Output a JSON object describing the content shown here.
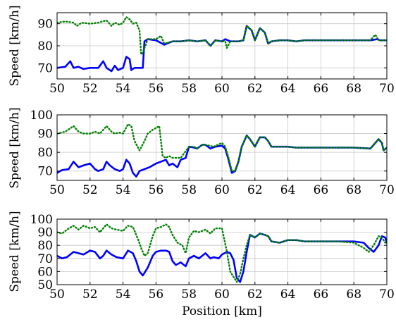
{
  "chart_data": [
    {
      "type": "line",
      "xlabel": "",
      "ylabel": "Speed [km/h]",
      "xlim": [
        50,
        70
      ],
      "ylim": [
        65,
        95
      ],
      "xticks": [
        "50",
        "52",
        "54",
        "56",
        "58",
        "60",
        "62",
        "64",
        "66",
        "68",
        "70"
      ],
      "yticks": [
        "70",
        "80",
        "90"
      ],
      "grid": true,
      "colors": {
        "solid": "#0000ff",
        "dotted": "#008000"
      },
      "series": [
        {
          "style": "solid",
          "x": [
            50,
            50.5,
            50.8,
            51,
            51.3,
            51.6,
            52,
            52.5,
            52.8,
            53,
            53.3,
            53.5,
            53.7,
            54,
            54.2,
            54.4,
            54.5,
            54.7,
            55,
            55.2,
            55.3,
            55.5,
            56,
            56.5,
            57,
            57.5,
            58,
            58.5,
            59,
            59.3,
            59.6,
            60,
            60.2,
            60.5,
            61,
            61.3,
            61.5,
            61.8,
            62,
            62.3,
            62.6,
            62.8,
            63,
            63.5,
            64,
            64.5,
            65,
            66,
            67,
            68,
            69,
            69.4,
            69.6,
            70
          ],
          "y": [
            70,
            70.5,
            73,
            70,
            70.5,
            69.5,
            70,
            70,
            73,
            70,
            68.5,
            71,
            69,
            70,
            75,
            74,
            69,
            70,
            70,
            70,
            82,
            83,
            82.5,
            80.5,
            82,
            82,
            82.5,
            82,
            82.5,
            80,
            82.5,
            82,
            83,
            82,
            82,
            82.5,
            89,
            87,
            82.5,
            88,
            86,
            81,
            82,
            82.5,
            82.5,
            82,
            82.5,
            82.5,
            82.5,
            82.5,
            82.5,
            83,
            82.5,
            82.5
          ]
        },
        {
          "style": "dotted",
          "x": [
            50,
            50.5,
            51,
            51.2,
            51.5,
            52,
            52.5,
            53,
            53.3,
            53.5,
            53.8,
            54,
            54.2,
            54.4,
            54.6,
            54.8,
            55,
            55.1,
            55.2,
            55.3,
            55.5,
            56,
            56.3,
            56.5,
            57,
            57.5,
            58,
            58.5,
            59,
            59.3,
            59.6,
            60,
            60.2,
            60.3,
            60.5,
            61,
            61.3,
            61.5,
            61.8,
            62,
            62.3,
            62.6,
            62.8,
            63,
            63.5,
            64,
            64.5,
            65,
            66,
            67,
            68,
            69,
            69.3,
            69.5,
            70
          ],
          "y": [
            90.5,
            91,
            90.5,
            89,
            90.5,
            90,
            90.5,
            91.5,
            89,
            90.5,
            89.5,
            90.5,
            93,
            92,
            90,
            90.5,
            87,
            76,
            77,
            79,
            83,
            83,
            84.5,
            81,
            82,
            82,
            82.5,
            82,
            82.5,
            80,
            82.5,
            82,
            82,
            79,
            82,
            82,
            82.5,
            89,
            87,
            82.5,
            88,
            86,
            81,
            82,
            82.5,
            82.5,
            82,
            82.5,
            82.5,
            82.5,
            82.5,
            82.5,
            85,
            82.5,
            82.5
          ]
        }
      ]
    },
    {
      "type": "line",
      "xlabel": "",
      "ylabel": "Speed [km/h]",
      "xlim": [
        50,
        70
      ],
      "ylim": [
        65,
        100
      ],
      "xticks": [
        "50",
        "52",
        "54",
        "56",
        "58",
        "60",
        "62",
        "64",
        "66",
        "68",
        "70"
      ],
      "yticks": [
        "70",
        "80",
        "90",
        "100"
      ],
      "grid": true,
      "series": [
        {
          "style": "solid",
          "x": [
            50,
            50.3,
            50.7,
            51,
            51.3,
            51.6,
            52,
            52.3,
            52.5,
            52.8,
            53,
            53.2,
            53.5,
            53.8,
            54,
            54.2,
            54.4,
            54.6,
            54.8,
            55,
            55.3,
            55.6,
            56,
            56.3,
            56.6,
            56.8,
            57,
            57.3,
            57.5,
            57.8,
            58,
            58.3,
            58.5,
            58.8,
            59,
            59.3,
            59.6,
            60,
            60.2,
            60.4,
            60.6,
            60.8,
            61,
            61.2,
            61.5,
            61.7,
            62,
            62.3,
            62.6,
            62.8,
            63,
            63.5,
            64,
            64.5,
            65,
            66,
            67,
            68,
            69,
            69.3,
            69.5,
            69.7,
            69.8,
            70
          ],
          "y": [
            69,
            70.5,
            71,
            75,
            72,
            73,
            74,
            71,
            70,
            71,
            75,
            73,
            71,
            70,
            71,
            76,
            74,
            69,
            67,
            70,
            71,
            72,
            74,
            75,
            76,
            73,
            74,
            72,
            76,
            77,
            83,
            82.5,
            82,
            84,
            84,
            82,
            83,
            83.5,
            82,
            76,
            69,
            70,
            75,
            83,
            89,
            87,
            83,
            88,
            88,
            86,
            83,
            83,
            83,
            82.5,
            82.5,
            82.5,
            82.5,
            82.5,
            82,
            85,
            87,
            85,
            81,
            82.5
          ]
        },
        {
          "style": "dotted",
          "x": [
            50,
            50.5,
            51,
            51.3,
            51.6,
            52,
            52.3,
            52.6,
            53,
            53.3,
            53.5,
            53.8,
            54,
            54.3,
            54.5,
            54.7,
            55,
            55.3,
            55.5,
            55.8,
            56,
            56.2,
            56.4,
            56.6,
            56.8,
            57,
            57.5,
            58,
            58.3,
            58.5,
            58.8,
            59,
            59.5,
            60,
            60.2,
            60.4,
            60.6,
            60.8,
            61,
            61.2,
            61.5,
            61.7,
            62,
            62.3,
            62.6,
            62.8,
            63,
            63.5,
            64,
            64.5,
            65,
            66,
            67,
            68,
            69,
            69.3,
            69.5,
            69.7,
            69.8,
            70
          ],
          "y": [
            90,
            91,
            94,
            91,
            90,
            90,
            91,
            90,
            94,
            91,
            90,
            90.5,
            90,
            95,
            94,
            86,
            81,
            86,
            90,
            92,
            93,
            94,
            78,
            77,
            78,
            77,
            77,
            83,
            83,
            82,
            84,
            84,
            83,
            85,
            83,
            77,
            70,
            70,
            75,
            83,
            89,
            87,
            83,
            88,
            88,
            86,
            83,
            83,
            83,
            82.5,
            82.5,
            82.5,
            82.5,
            82.5,
            82,
            85,
            87,
            85,
            81,
            82.5
          ]
        }
      ]
    },
    {
      "type": "line",
      "xlabel": "Position [km]",
      "ylabel": "Speed [km/h]",
      "xlim": [
        50,
        70
      ],
      "ylim": [
        50,
        100
      ],
      "xticks": [
        "50",
        "52",
        "54",
        "56",
        "58",
        "60",
        "62",
        "64",
        "66",
        "68",
        "70"
      ],
      "yticks": [
        "50",
        "60",
        "70",
        "80",
        "90",
        "100"
      ],
      "grid": true,
      "series": [
        {
          "style": "solid",
          "x": [
            50,
            50.3,
            50.6,
            51,
            51.3,
            51.6,
            52,
            52.3,
            52.6,
            52.8,
            53,
            53.3,
            53.6,
            54,
            54.3,
            54.6,
            54.8,
            55,
            55.2,
            55.5,
            55.8,
            56,
            56.3,
            56.6,
            56.8,
            57,
            57.2,
            57.5,
            57.8,
            58,
            58.3,
            58.6,
            59,
            59.3,
            59.5,
            59.8,
            60,
            60.3,
            60.5,
            60.7,
            60.9,
            61.1,
            61.3,
            61.5,
            61.7,
            62,
            62.3,
            62.6,
            62.8,
            63,
            63.5,
            64,
            64.5,
            65,
            66,
            67,
            68,
            68.6,
            68.9,
            69.2,
            69.5,
            69.7,
            69.9,
            70
          ],
          "y": [
            72,
            70,
            71,
            75,
            74,
            73,
            76,
            75,
            70,
            72,
            76,
            73,
            71,
            70,
            76,
            74,
            68,
            60,
            57,
            63,
            72,
            75,
            76,
            76,
            75,
            68,
            65,
            67,
            64,
            70,
            72,
            70,
            74,
            70,
            71,
            70,
            73,
            75,
            74,
            69,
            55,
            52,
            60,
            75,
            88,
            86,
            89,
            88,
            87,
            83,
            82,
            84,
            84,
            83,
            83,
            83,
            83,
            82,
            78,
            75,
            80,
            87,
            86,
            82
          ]
        },
        {
          "style": "dotted",
          "x": [
            50,
            50.3,
            50.6,
            51,
            51.3,
            51.6,
            52,
            52.3,
            52.6,
            53,
            53.3,
            53.6,
            54,
            54.3,
            54.6,
            54.9,
            55.1,
            55.3,
            55.5,
            55.8,
            56,
            56.3,
            56.6,
            56.8,
            57,
            57.3,
            57.6,
            57.8,
            58,
            58.3,
            58.6,
            59,
            59.3,
            59.6,
            60,
            60.3,
            60.5,
            60.7,
            60.9,
            61.1,
            61.3,
            61.5,
            61.7,
            62,
            62.3,
            62.6,
            62.8,
            63,
            63.5,
            64,
            64.5,
            65,
            66,
            67,
            68,
            68.6,
            68.9,
            69.2,
            69.5,
            69.7,
            69.9,
            70
          ],
          "y": [
            90,
            89,
            92,
            95,
            92,
            95,
            93,
            94,
            90,
            96,
            93,
            92,
            91,
            95,
            94,
            85,
            78,
            72,
            74,
            87,
            93,
            94,
            96,
            94,
            88,
            82,
            80,
            74,
            86,
            91,
            90,
            92,
            89,
            93,
            93,
            75,
            60,
            56,
            52,
            58,
            70,
            80,
            88,
            86,
            89,
            88,
            87,
            83,
            82,
            84,
            84,
            83,
            83,
            83,
            82,
            78,
            75,
            80,
            87,
            86,
            82,
            83
          ]
        }
      ]
    }
  ]
}
